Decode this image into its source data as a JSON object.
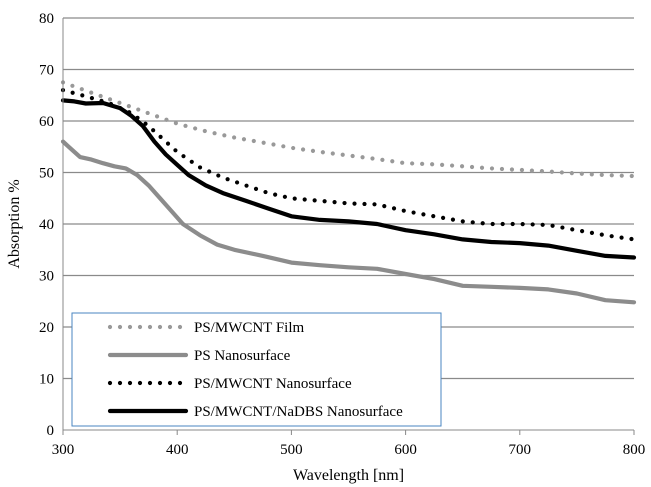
{
  "chart_data": {
    "type": "line",
    "xlabel": "Wavelength [nm]",
    "ylabel": "Absorption %",
    "xlim": [
      300,
      800
    ],
    "ylim": [
      0,
      80
    ],
    "xticks": [
      300,
      400,
      500,
      600,
      700,
      800
    ],
    "yticks": [
      0,
      10,
      20,
      30,
      40,
      50,
      60,
      70,
      80
    ],
    "grid": "horizontal",
    "legend_position": "bottom-left",
    "series": [
      {
        "name": "PS/MWCNT Film",
        "style": "dotted",
        "color": "#999999",
        "x": [
          300,
          325,
          350,
          375,
          400,
          425,
          450,
          475,
          500,
          525,
          550,
          575,
          600,
          625,
          650,
          675,
          700,
          725,
          750,
          775,
          800
        ],
        "y": [
          67.5,
          65.5,
          63.5,
          61.5,
          59.5,
          58.0,
          56.8,
          55.8,
          54.8,
          54.0,
          53.3,
          52.6,
          51.8,
          51.6,
          51.2,
          50.8,
          50.5,
          50.2,
          49.8,
          49.5,
          49.3
        ]
      },
      {
        "name": "PS Nanosurface",
        "style": "solid",
        "color": "#8c8c8c",
        "x": [
          300,
          305,
          315,
          325,
          335,
          345,
          355,
          365,
          375,
          385,
          395,
          405,
          420,
          435,
          450,
          475,
          500,
          525,
          550,
          575,
          600,
          625,
          650,
          675,
          700,
          725,
          750,
          775,
          800
        ],
        "y": [
          56.0,
          55.0,
          53.0,
          52.5,
          51.8,
          51.2,
          50.8,
          49.5,
          47.5,
          45.0,
          42.5,
          40.0,
          37.8,
          36.0,
          35.0,
          33.8,
          32.5,
          32.0,
          31.6,
          31.3,
          30.3,
          29.3,
          28.0,
          27.8,
          27.6,
          27.3,
          26.5,
          25.2,
          24.8
        ]
      },
      {
        "name": "PS/MWCNT Nanosurface",
        "style": "dotted",
        "color": "#000000",
        "x": [
          300,
          320,
          340,
          360,
          375,
          390,
          400,
          420,
          440,
          460,
          480,
          500,
          525,
          550,
          575,
          600,
          625,
          650,
          675,
          700,
          725,
          750,
          775,
          800
        ],
        "y": [
          66.0,
          64.8,
          63.5,
          61.5,
          59.0,
          56.0,
          54.0,
          51.0,
          49.0,
          47.5,
          46.0,
          45.0,
          44.5,
          44.0,
          43.8,
          42.5,
          41.5,
          40.5,
          40.0,
          40.0,
          39.8,
          38.8,
          37.8,
          37.0
        ]
      },
      {
        "name": "PS/MWCNT/NaDBS Nanosurface",
        "style": "solid",
        "color": "#000000",
        "x": [
          300,
          310,
          320,
          335,
          350,
          360,
          370,
          380,
          390,
          400,
          410,
          425,
          440,
          460,
          480,
          500,
          525,
          550,
          575,
          600,
          625,
          650,
          675,
          700,
          725,
          750,
          775,
          800
        ],
        "y": [
          64.0,
          63.8,
          63.4,
          63.5,
          62.5,
          61.0,
          59.0,
          56.0,
          53.5,
          51.5,
          49.5,
          47.5,
          46.0,
          44.5,
          43.0,
          41.5,
          40.8,
          40.5,
          40.0,
          38.8,
          38.0,
          37.0,
          36.5,
          36.3,
          35.8,
          34.8,
          33.8,
          33.5
        ]
      }
    ]
  }
}
